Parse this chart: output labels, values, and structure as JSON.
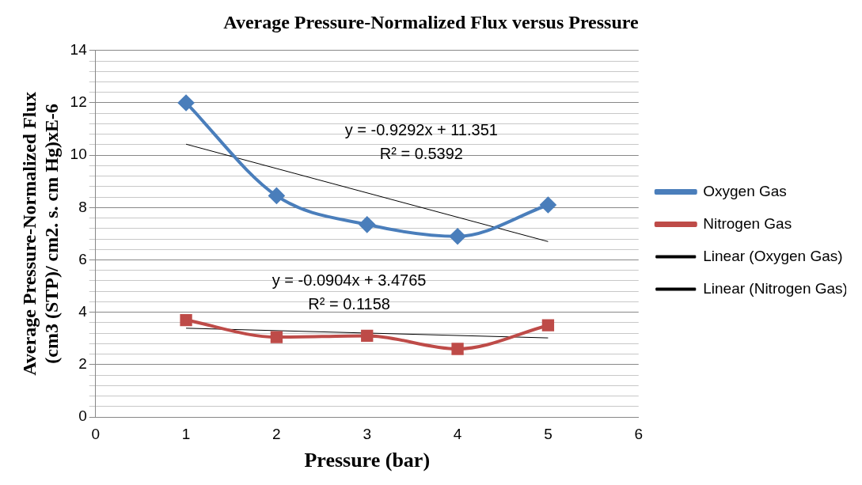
{
  "chart_data": {
    "type": "line",
    "title": "Average Pressure-Normalized Flux versus Pressure",
    "xlabel": "Pressure (bar)",
    "ylabel": "Average Pressure-Normalized Flux\n(cm3 (STP)/ cm2. s. cm Hg)xE-6",
    "x": [
      1,
      2,
      3,
      4,
      5
    ],
    "series": [
      {
        "name": "Oxygen Gas",
        "color": "#4a7ebb",
        "marker": "diamond",
        "values": [
          12.0,
          8.45,
          7.35,
          6.9,
          8.1
        ]
      },
      {
        "name": "Nitrogen Gas",
        "color": "#be4b48",
        "marker": "square",
        "values": [
          3.7,
          3.05,
          3.1,
          2.6,
          3.5
        ]
      },
      {
        "name": "Linear (Oxygen Gas)",
        "color": "#000000",
        "marker": "none",
        "values": [
          10.42,
          null,
          null,
          null,
          6.7
        ]
      },
      {
        "name": "Linear (Nitrogen Gas)",
        "color": "#000000",
        "marker": "none",
        "values": [
          3.39,
          null,
          null,
          null,
          3.02
        ]
      }
    ],
    "annotations": [
      "y = -0.9292x + 11.351",
      "R² = 0.5392",
      "y = -0.0904x + 3.4765",
      "R² = 0.1158"
    ],
    "xlim": [
      0,
      6
    ],
    "xticks": [
      0,
      1,
      2,
      3,
      4,
      5,
      6
    ],
    "ylim": [
      0,
      14
    ],
    "yticks": [
      0,
      {
        "value": 0.4,
        "label": null
      },
      {
        "value": 0.8,
        "label": null
      },
      {
        "value": 1.2,
        "label": null
      },
      {
        "value": 1.6,
        "label": null
      },
      2,
      {
        "value": 2.4,
        "label": null
      },
      {
        "value": 2.8,
        "label": null
      },
      {
        "value": 3.2,
        "label": null
      },
      {
        "value": 3.6,
        "label": null
      },
      4,
      {
        "value": 4.4,
        "label": null
      },
      {
        "value": 4.8,
        "label": null
      },
      {
        "value": 5.2,
        "label": null
      },
      {
        "value": 5.6,
        "label": null
      },
      6,
      {
        "value": 6.4,
        "label": null
      },
      {
        "value": 6.8,
        "label": null
      },
      {
        "value": 7.2,
        "label": null
      },
      {
        "value": 7.6,
        "label": null
      },
      8,
      {
        "value": 8.4,
        "label": null
      },
      {
        "value": 8.8,
        "label": null
      },
      {
        "value": 9.2,
        "label": null
      },
      {
        "value": 9.6,
        "label": null
      },
      10,
      {
        "value": 10.4,
        "label": null
      },
      {
        "value": 10.8,
        "label": null
      },
      {
        "value": 11.2,
        "label": null
      },
      {
        "value": 11.6,
        "label": null
      },
      12,
      {
        "value": 12.4,
        "label": null
      },
      {
        "value": 12.8,
        "label": null
      },
      {
        "value": 13.2,
        "label": null
      },
      {
        "value": 13.6,
        "label": null
      },
      14
    ],
    "grid": "y",
    "legend": "right",
    "line_style": "solid"
  }
}
